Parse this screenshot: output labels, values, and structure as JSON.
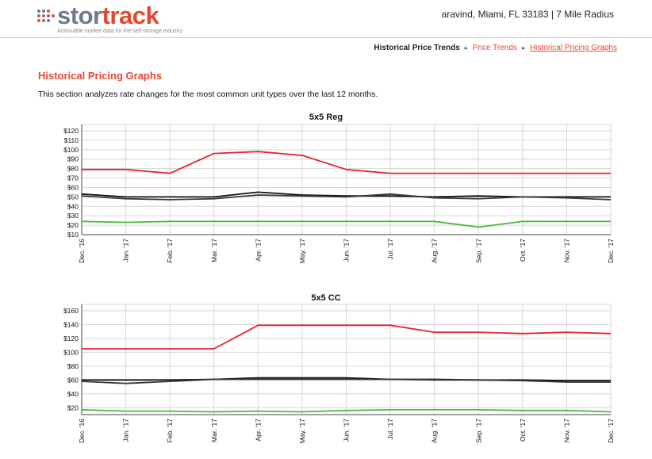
{
  "header": {
    "logo_part1": "stor",
    "logo_part2": "track",
    "tagline": "Actionable market data for the self-storage industry",
    "location": "aravind, Miami, FL 33183 | 7 Mile Radius"
  },
  "breadcrumb": {
    "root": "Historical Price Trends",
    "item1": "Price Trends",
    "current": "Historical Pricing Graphs"
  },
  "section": {
    "title": "Historical Pricing Graphs",
    "description": "This section analyzes rate changes for the most common unit types over the last 12 months."
  },
  "colors": {
    "red": "#e8212a",
    "black": "#111111",
    "dark": "#3a3a3a",
    "green": "#4cb840",
    "accent": "#e8472f"
  },
  "icons": {
    "logo": "stortrack-dots-icon",
    "separator": "triangle-right-icon"
  },
  "chart_data": [
    {
      "type": "line",
      "title": "5x5 Reg",
      "categories": [
        "Dec. '16",
        "Jan. '17",
        "Feb. '17",
        "Mar. '17",
        "Apr. '17",
        "May. '17",
        "Jun. '17",
        "Jul. '17",
        "Aug. '17",
        "Sep. '17",
        "Oct. '17",
        "Nov. '17",
        "Dec. '17"
      ],
      "yticks": [
        "$10",
        "$20",
        "$30",
        "$40",
        "$50",
        "$60",
        "$70",
        "$80",
        "$90",
        "$100",
        "$110",
        "$120"
      ],
      "ylim": [
        10,
        120
      ],
      "grid": true,
      "series": [
        {
          "color": "red",
          "values": [
            79,
            79,
            75,
            96,
            98,
            94,
            79,
            75,
            75,
            75,
            75,
            75,
            75
          ]
        },
        {
          "color": "black",
          "values": [
            53,
            50,
            50,
            50,
            55,
            52,
            51,
            51,
            50,
            51,
            50,
            50,
            50
          ]
        },
        {
          "color": "dark",
          "values": [
            51,
            48,
            47,
            48,
            52,
            51,
            50,
            53,
            49,
            48,
            50,
            49,
            47
          ]
        },
        {
          "color": "green",
          "values": [
            24,
            23,
            24,
            24,
            24,
            24,
            24,
            24,
            24,
            18,
            24,
            24,
            24
          ]
        }
      ]
    },
    {
      "type": "line",
      "title": "5x5 CC",
      "categories": [
        "Dec. '16",
        "Jan. '17",
        "Feb. '17",
        "Mar. '17",
        "Apr. '17",
        "May. '17",
        "Jun. '17",
        "Jul. '17",
        "Aug. '17",
        "Sep. '17",
        "Oct. '17",
        "Nov. '17",
        "Dec. '17"
      ],
      "yticks": [
        "$20",
        "$40",
        "$60",
        "$80",
        "$100",
        "$120",
        "$140",
        "$160"
      ],
      "ylim": [
        10,
        160
      ],
      "grid": true,
      "series": [
        {
          "color": "red",
          "values": [
            105,
            105,
            105,
            105,
            139,
            139,
            139,
            139,
            129,
            129,
            127,
            129,
            127
          ]
        },
        {
          "color": "black",
          "values": [
            60,
            60,
            60,
            61,
            63,
            63,
            63,
            61,
            61,
            60,
            60,
            59,
            59
          ]
        },
        {
          "color": "dark",
          "values": [
            58,
            55,
            58,
            61,
            61,
            61,
            61,
            61,
            60,
            60,
            59,
            57,
            57
          ]
        },
        {
          "color": "green",
          "values": [
            17,
            15,
            15,
            14,
            15,
            14,
            16,
            17,
            17,
            17,
            16,
            16,
            14
          ]
        }
      ]
    }
  ]
}
